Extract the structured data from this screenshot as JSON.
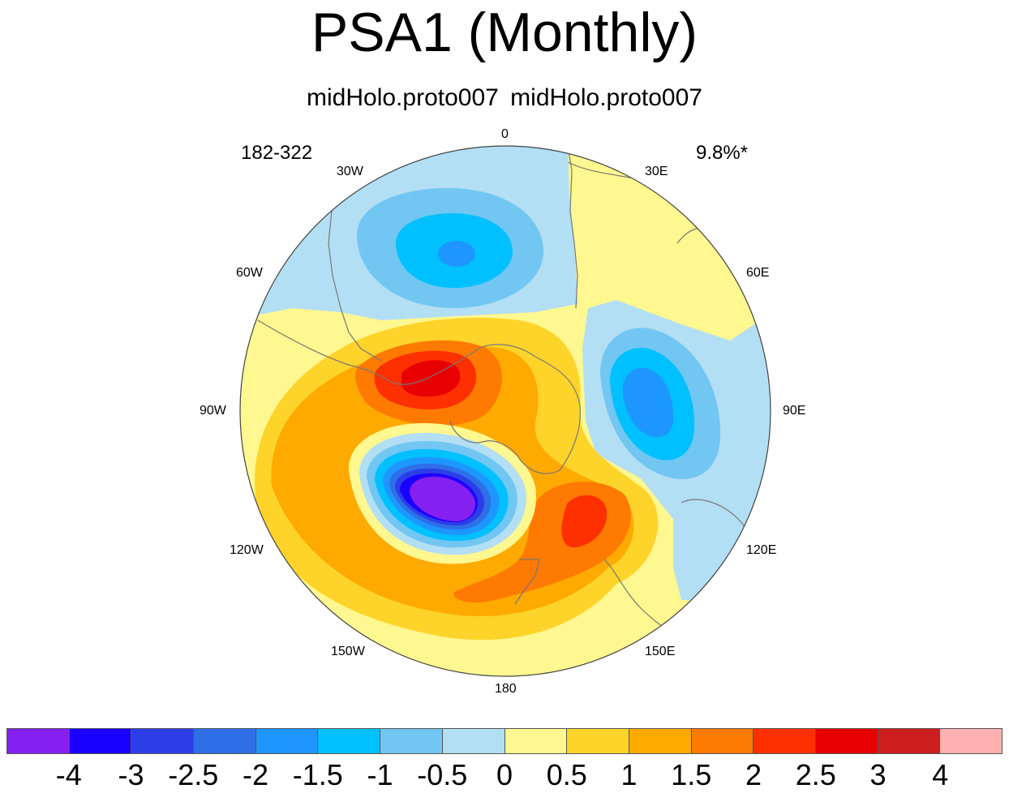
{
  "title": "PSA1 (Monthly)",
  "subtitle": "midHolo.proto007  midHolo.proto007",
  "corner_left": "182-322",
  "corner_right": "9.8%*",
  "longitude_labels": {
    "lon_0": "0",
    "lon_30e": "30E",
    "lon_60e": "60E",
    "lon_90e": "90E",
    "lon_120e": "120E",
    "lon_150e": "150E",
    "lon_180": "180",
    "lon_150w": "150W",
    "lon_120w": "120W",
    "lon_90w": "90W",
    "lon_60w": "60W",
    "lon_30w": "30W"
  },
  "colorbar": {
    "colors": [
      "#8420f0",
      "#1a00ff",
      "#2c3ee8",
      "#2e6fe8",
      "#1e96ff",
      "#00c0ff",
      "#72c6f2",
      "#b3dff4",
      "#fff78f",
      "#ffd42a",
      "#ffaa00",
      "#ff7a00",
      "#ff3000",
      "#e80000",
      "#cd1e1e",
      "#ffb0b0"
    ],
    "labels": [
      "-4",
      "-3",
      "-2.5",
      "-2",
      "-1.5",
      "-1",
      "-0.5",
      "0",
      "0.5",
      "1",
      "1.5",
      "2",
      "2.5",
      "3",
      "4"
    ]
  },
  "map_colors": {
    "ocean_outline": "#444444",
    "coastline": "#777777"
  }
}
